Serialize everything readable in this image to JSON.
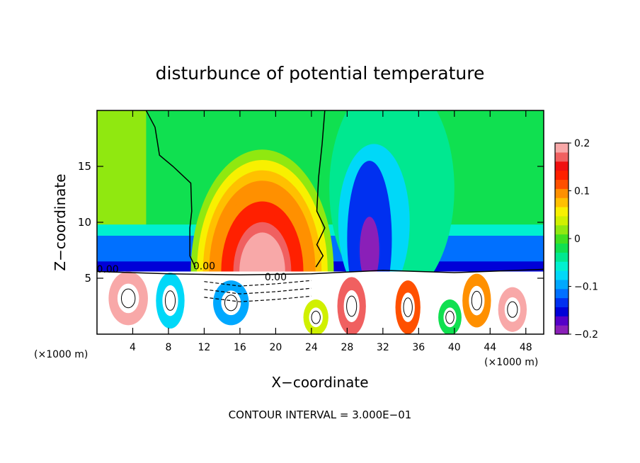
{
  "chart_data": {
    "type": "heatmap",
    "title": "disturbunce of potential temperature",
    "xlabel": "X−coordinate",
    "ylabel": "Z−coordinate",
    "x_unit": "(×1000 m)",
    "x_unit_right": "(×1000 m)",
    "footer": "CONTOUR INTERVAL = 3.000E−01",
    "xlim": [
      0,
      50
    ],
    "ylim": [
      0,
      20
    ],
    "x_ticks": [
      4,
      8,
      12,
      16,
      20,
      24,
      28,
      32,
      36,
      40,
      44,
      48
    ],
    "x_tick_labels": [
      "4",
      "8",
      "12",
      "16",
      "20",
      "24",
      "28",
      "32",
      "36",
      "40",
      "44",
      "48"
    ],
    "y_ticks": [
      5,
      10,
      15
    ],
    "y_tick_labels": [
      "5",
      "10",
      "15"
    ],
    "colorbar": {
      "range": [
        -0.2,
        0.2
      ],
      "ticks": [
        0.2,
        0.1,
        0,
        -0.1,
        -0.2
      ],
      "tick_labels": [
        "0.2",
        "0.1",
        "0",
        "−0.1",
        "−0.2"
      ],
      "colors": [
        "#8a1fb8",
        "#5500c8",
        "#0000d8",
        "#0030f0",
        "#0070ff",
        "#00a8ff",
        "#00d8f8",
        "#00f0d0",
        "#00e890",
        "#10e050",
        "#40e020",
        "#90e810",
        "#d0f000",
        "#f8f000",
        "#ffc000",
        "#ff9000",
        "#ff5000",
        "#ff2000",
        "#f01010",
        "#f06060",
        "#f8a8a8"
      ]
    },
    "contour_labels": [
      {
        "text": "0.00",
        "x": 12,
        "z": 5.8
      },
      {
        "text": "0.00",
        "x": 20,
        "z": 4.8
      },
      {
        "text": "0.00",
        "x": 1.2,
        "z": 5.5
      }
    ],
    "features": {
      "warm_dome": {
        "x_center": 18.5,
        "z_top": 16.5,
        "x_half_width": 6,
        "peak": 0.2
      },
      "cold_column": {
        "x_center": 30.5,
        "z_low": 5,
        "z_high": 14,
        "peak": -0.2
      },
      "zero_contour_left_x_at_z20": 5.5,
      "zero_contour_right_x_at_z20": 25.5,
      "mixed_layer_top_z": 5.5
    }
  }
}
